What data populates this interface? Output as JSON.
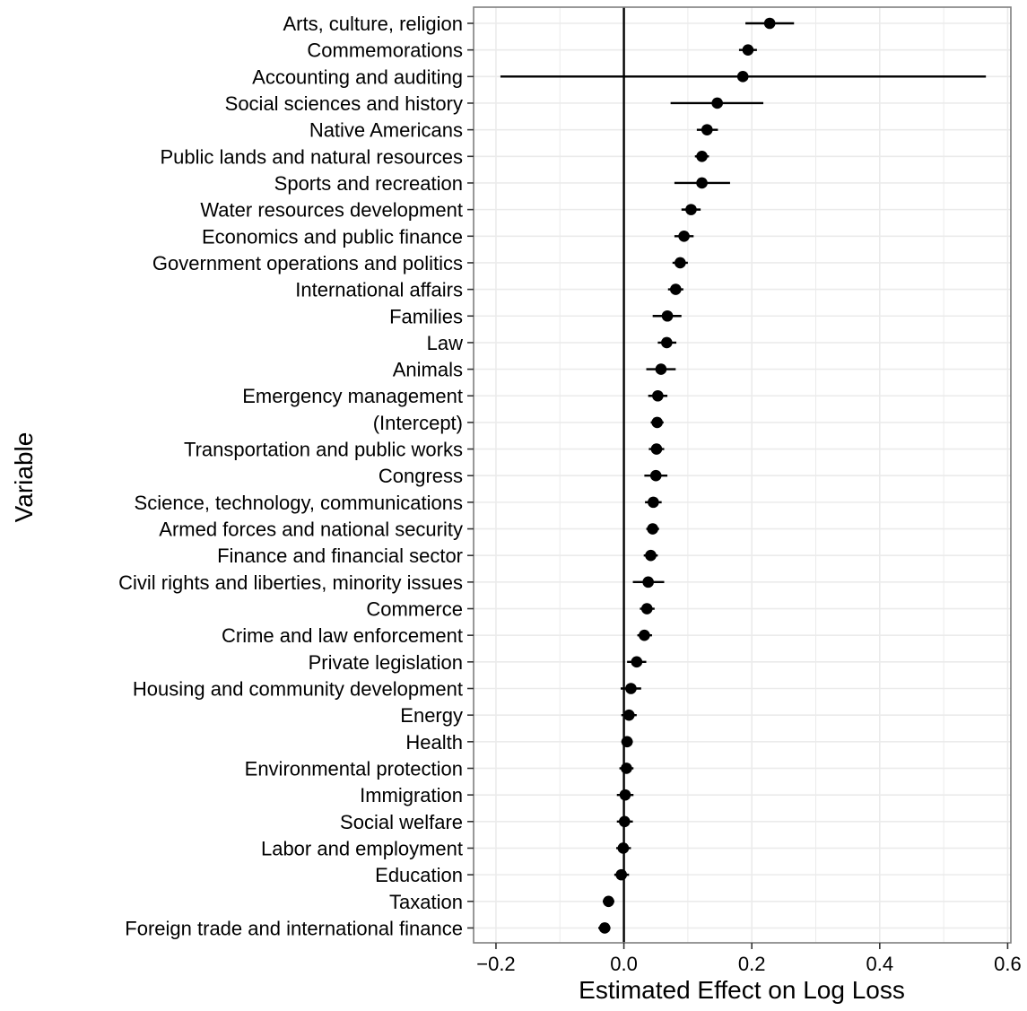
{
  "chart_data": {
    "type": "dot-interval",
    "title": "",
    "xlabel": "Estimated Effect on Log Loss",
    "ylabel": "Variable",
    "xlim": [
      -0.235,
      0.605
    ],
    "x_ticks": [
      -0.2,
      0.0,
      0.2,
      0.4,
      0.6
    ],
    "x_tick_labels": [
      "−0.2",
      "0.0",
      "0.2",
      "0.4",
      "0.6"
    ],
    "reference_line_x": 0.0,
    "grid": true,
    "legend": "none",
    "colors": {
      "point": "#000000",
      "interval": "#000000",
      "reference_line": "#000000",
      "grid": "#ebebeb",
      "panel_border": "#7f7f7f"
    },
    "points": [
      {
        "label": "Arts, culture, religion",
        "estimate": 0.228,
        "low": 0.19,
        "high": 0.266
      },
      {
        "label": "Commemorations",
        "estimate": 0.194,
        "low": 0.18,
        "high": 0.208
      },
      {
        "label": "Accounting and auditing",
        "estimate": 0.186,
        "low": -0.193,
        "high": 0.566
      },
      {
        "label": "Social sciences and history",
        "estimate": 0.146,
        "low": 0.073,
        "high": 0.218
      },
      {
        "label": "Native Americans",
        "estimate": 0.13,
        "low": 0.114,
        "high": 0.147
      },
      {
        "label": "Public lands and natural resources",
        "estimate": 0.122,
        "low": 0.111,
        "high": 0.133
      },
      {
        "label": "Sports and recreation",
        "estimate": 0.122,
        "low": 0.079,
        "high": 0.166
      },
      {
        "label": "Water resources development",
        "estimate": 0.105,
        "low": 0.09,
        "high": 0.12
      },
      {
        "label": "Economics and public finance",
        "estimate": 0.094,
        "low": 0.079,
        "high": 0.109
      },
      {
        "label": "Government operations and politics",
        "estimate": 0.088,
        "low": 0.076,
        "high": 0.1
      },
      {
        "label": "International affairs",
        "estimate": 0.081,
        "low": 0.069,
        "high": 0.093
      },
      {
        "label": "Families",
        "estimate": 0.068,
        "low": 0.045,
        "high": 0.09
      },
      {
        "label": "Law",
        "estimate": 0.067,
        "low": 0.053,
        "high": 0.082
      },
      {
        "label": "Animals",
        "estimate": 0.058,
        "low": 0.035,
        "high": 0.081
      },
      {
        "label": "Emergency management",
        "estimate": 0.053,
        "low": 0.038,
        "high": 0.068
      },
      {
        "label": "(Intercept)",
        "estimate": 0.052,
        "low": 0.042,
        "high": 0.062
      },
      {
        "label": "Transportation and public works",
        "estimate": 0.051,
        "low": 0.039,
        "high": 0.063
      },
      {
        "label": "Congress",
        "estimate": 0.05,
        "low": 0.032,
        "high": 0.068
      },
      {
        "label": "Science, technology, communications",
        "estimate": 0.046,
        "low": 0.033,
        "high": 0.059
      },
      {
        "label": "Armed forces and national security",
        "estimate": 0.045,
        "low": 0.035,
        "high": 0.055
      },
      {
        "label": "Finance and financial sector",
        "estimate": 0.042,
        "low": 0.031,
        "high": 0.053
      },
      {
        "label": "Civil rights and liberties, minority issues",
        "estimate": 0.038,
        "low": 0.014,
        "high": 0.063
      },
      {
        "label": "Commerce",
        "estimate": 0.036,
        "low": 0.025,
        "high": 0.048
      },
      {
        "label": "Crime and law enforcement",
        "estimate": 0.032,
        "low": 0.021,
        "high": 0.044
      },
      {
        "label": "Private legislation",
        "estimate": 0.02,
        "low": 0.005,
        "high": 0.035
      },
      {
        "label": "Housing and community development",
        "estimate": 0.011,
        "low": -0.005,
        "high": 0.027
      },
      {
        "label": "Energy",
        "estimate": 0.008,
        "low": -0.004,
        "high": 0.02
      },
      {
        "label": "Health",
        "estimate": 0.005,
        "low": -0.004,
        "high": 0.014
      },
      {
        "label": "Environmental protection",
        "estimate": 0.004,
        "low": -0.007,
        "high": 0.015
      },
      {
        "label": "Immigration",
        "estimate": 0.002,
        "low": -0.011,
        "high": 0.015
      },
      {
        "label": "Social welfare",
        "estimate": 0.001,
        "low": -0.011,
        "high": 0.014
      },
      {
        "label": "Labor and employment",
        "estimate": -0.001,
        "low": -0.012,
        "high": 0.011
      },
      {
        "label": "Education",
        "estimate": -0.004,
        "low": -0.015,
        "high": 0.008
      },
      {
        "label": "Taxation",
        "estimate": -0.024,
        "low": -0.033,
        "high": -0.015
      },
      {
        "label": "Foreign trade and international finance",
        "estimate": -0.03,
        "low": -0.04,
        "high": -0.021
      }
    ]
  }
}
